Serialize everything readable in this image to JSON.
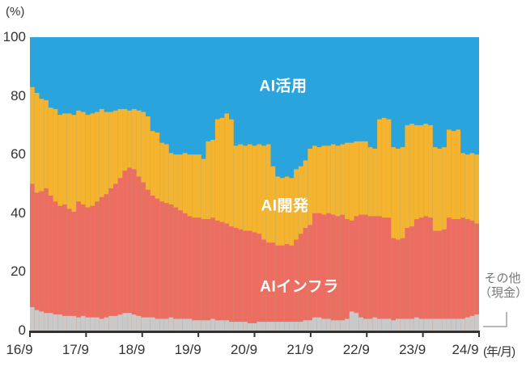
{
  "page": {
    "background": "#ffffff"
  },
  "labels": {
    "y_unit": "(%)",
    "x_unit": "(年/月)",
    "other_line1": "その他",
    "other_line2": "（現金）"
  },
  "colors": {
    "axis": "#323232",
    "tick_text": "#333333",
    "in_plot_label": "#ffffff",
    "other_label": "#777777",
    "callout": "#a0a0a0"
  },
  "chart_data": {
    "type": "bar",
    "subtype": "100%-stacked-monthly-bars",
    "title": "",
    "x_start": "2016/9",
    "x_end": "2024/9",
    "x_interval": "monthly",
    "x_tick_labels": [
      "16/9",
      "17/9",
      "18/9",
      "19/9",
      "20/9",
      "21/9",
      "22/9",
      "23/9",
      "24/9"
    ],
    "x_axis_unit": "(年/月)",
    "y_unit": "(%)",
    "y_ticks": [
      0,
      20,
      40,
      60,
      80,
      100
    ],
    "ylim": [
      0,
      100
    ],
    "legend": "series labels drawn inside plot; その他（現金） labeled outside right with callout",
    "series_order_bottom_to_top": [
      "その他（現金）",
      "AIインフラ",
      "AI開発",
      "AI活用"
    ],
    "series": [
      {
        "name": "その他（現金）",
        "color": "#c9c9c9"
      },
      {
        "name": "AIインフラ",
        "color": "#ec6d62"
      },
      {
        "name": "AI開発",
        "color": "#f5b42f"
      },
      {
        "name": "AI活用",
        "color": "#2aa4dd"
      }
    ],
    "cumulative_top_percent": {
      "note": "97 monthly points 2016/9..2024/9 (estimated from plot). Values are cumulative stack boundaries from bottom: sonota_genkin top, ai_infra top, ai_kaihatsu top; AI活用 fills up to 100.",
      "sonota_genkin": [
        8,
        7,
        6.5,
        6,
        6,
        5.5,
        5.5,
        5,
        5,
        5,
        4.5,
        5,
        4.5,
        4.5,
        4.5,
        4,
        4.5,
        5,
        5,
        5.5,
        6,
        6,
        5.5,
        5,
        4.5,
        4.5,
        4.5,
        4,
        4,
        4,
        4.5,
        4,
        4,
        4,
        4,
        3.5,
        3.5,
        3.5,
        3.5,
        4,
        3.5,
        3.5,
        3.5,
        3,
        3,
        3,
        3,
        2.5,
        2.5,
        3,
        3,
        3,
        3,
        3,
        3,
        3,
        3,
        3,
        3,
        3.5,
        3.5,
        4.5,
        4.5,
        4,
        4,
        3.5,
        3.5,
        3.5,
        4,
        6.5,
        6,
        4.5,
        4,
        4,
        4.5,
        4,
        4,
        4,
        3.5,
        4,
        4,
        4,
        4,
        4.5,
        4,
        4,
        4,
        4,
        4,
        4,
        4,
        4,
        4,
        4,
        4.5,
        5,
        5.5
      ],
      "ai_infra": [
        50,
        47,
        47.5,
        48.5,
        46,
        44,
        42.5,
        43,
        41.5,
        40.5,
        44,
        43,
        42,
        42.5,
        44,
        45.5,
        46.5,
        48.5,
        50,
        52,
        54.5,
        55.5,
        55,
        52.5,
        50.5,
        48,
        46,
        45,
        44,
        43.5,
        43,
        42,
        41,
        40,
        39,
        38.5,
        38.5,
        38,
        38,
        38.5,
        37.5,
        37,
        36.5,
        35.5,
        35,
        34.5,
        34,
        34,
        33.5,
        33,
        31,
        30,
        30,
        29,
        29,
        29.5,
        29,
        31,
        33,
        35,
        36,
        40,
        40,
        39.5,
        40,
        39.5,
        39,
        39.5,
        38,
        37.5,
        39,
        39.5,
        39.5,
        39,
        39,
        39,
        38.5,
        38.5,
        31.5,
        31,
        31.5,
        35,
        35.5,
        38,
        38.5,
        39,
        38.5,
        34,
        34,
        34.5,
        38.5,
        38,
        38,
        38.5,
        38,
        37.5,
        36.5
      ],
      "ai_kaihatsu": [
        83,
        81,
        79,
        78.5,
        76,
        75.5,
        73.5,
        74,
        74,
        73.5,
        75,
        74.5,
        73.5,
        74,
        74.5,
        75.5,
        74.5,
        74.5,
        75,
        75.5,
        75.5,
        75,
        75.5,
        75,
        74.5,
        73,
        68,
        67.5,
        64,
        63.5,
        60.5,
        60,
        60,
        60.5,
        60,
        60,
        60,
        58.5,
        64.5,
        65,
        72,
        72.5,
        74,
        72,
        63,
        63.5,
        63,
        63.5,
        63,
        63.5,
        63,
        63.5,
        56,
        52.5,
        52,
        52.5,
        52,
        55,
        56,
        58,
        62,
        63,
        62.5,
        63,
        63,
        63.5,
        63,
        63.5,
        64,
        64,
        64.5,
        64.5,
        64.5,
        62.5,
        62,
        72,
        72.5,
        72,
        62.5,
        62,
        62.5,
        70,
        70.5,
        70,
        70,
        70.5,
        70,
        62.5,
        62,
        62.5,
        68.5,
        68,
        68.5,
        60.5,
        60,
        60.5,
        60
      ]
    }
  }
}
